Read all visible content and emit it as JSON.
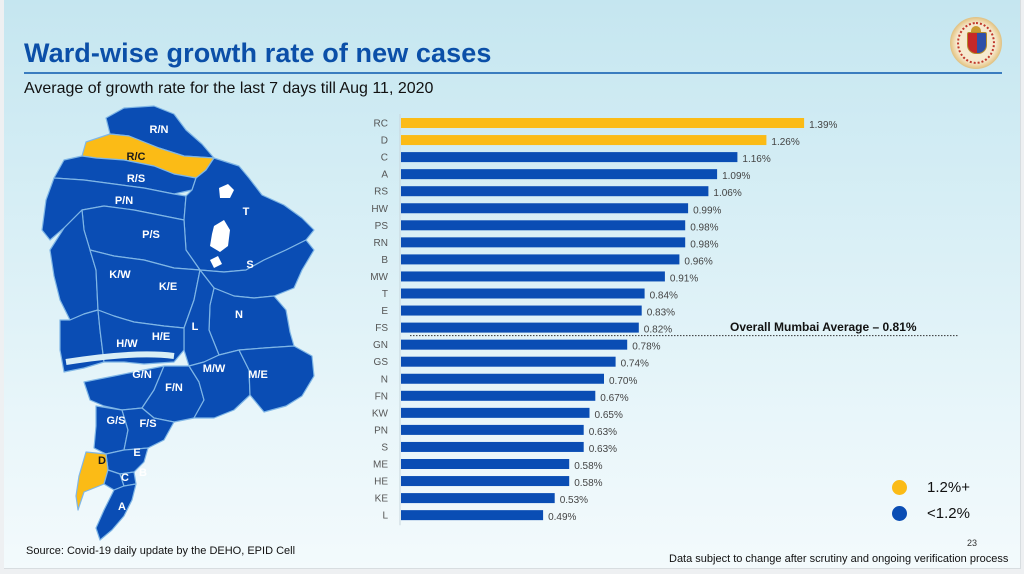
{
  "slide": {
    "title": "Ward-wise growth rate of new cases",
    "subtitle": "Average of growth rate for the last 7 days till Aug 11, 2020",
    "logo_icon": "bmc-emblem-icon",
    "source": "Source: Covid-19 daily update by the DEHO, EPID Cell",
    "disclaimer": "Data subject to change after scrutiny and ongoing verification process",
    "page_number": "23"
  },
  "map": {
    "wards": [
      {
        "label": "R/N",
        "category": "<1.2%"
      },
      {
        "label": "R/C",
        "category": "1.2%+"
      },
      {
        "label": "R/S",
        "category": "<1.2%"
      },
      {
        "label": "P/N",
        "category": "<1.2%"
      },
      {
        "label": "P/S",
        "category": "<1.2%"
      },
      {
        "label": "T",
        "category": "<1.2%"
      },
      {
        "label": "S",
        "category": "<1.2%"
      },
      {
        "label": "K/W",
        "category": "<1.2%"
      },
      {
        "label": "K/E",
        "category": "<1.2%"
      },
      {
        "label": "N",
        "category": "<1.2%"
      },
      {
        "label": "L",
        "category": "<1.2%"
      },
      {
        "label": "H/W",
        "category": "<1.2%"
      },
      {
        "label": "H/E",
        "category": "<1.2%"
      },
      {
        "label": "G/N",
        "category": "<1.2%"
      },
      {
        "label": "F/N",
        "category": "<1.2%"
      },
      {
        "label": "M/W",
        "category": "<1.2%"
      },
      {
        "label": "M/E",
        "category": "<1.2%"
      },
      {
        "label": "G/S",
        "category": "<1.2%"
      },
      {
        "label": "F/S",
        "category": "<1.2%"
      },
      {
        "label": "E",
        "category": "<1.2%"
      },
      {
        "label": "D",
        "category": "1.2%+"
      },
      {
        "label": "C",
        "category": "<1.2%"
      },
      {
        "label": "B",
        "category": "<1.2%"
      },
      {
        "label": "A",
        "category": "<1.2%"
      }
    ]
  },
  "legend": {
    "items": [
      {
        "label": "1.2%+",
        "color": "#fbbb16"
      },
      {
        "label": "<1.2%",
        "color": "#0a4db4"
      }
    ]
  },
  "chart_data": {
    "type": "bar",
    "orientation": "horizontal",
    "title": "Ward-wise growth rate of new cases",
    "subtitle": "Average of growth rate for the last 7 days till Aug 11, 2020",
    "xlabel": "",
    "ylabel": "",
    "unit": "%",
    "xlim": [
      0,
      1.5
    ],
    "grid": false,
    "categories": [
      "RC",
      "D",
      "C",
      "A",
      "RS",
      "HW",
      "PS",
      "RN",
      "B",
      "MW",
      "T",
      "E",
      "FS",
      "GN",
      "GS",
      "N",
      "FN",
      "KW",
      "PN",
      "S",
      "ME",
      "HE",
      "KE",
      "L"
    ],
    "values": [
      1.39,
      1.26,
      1.16,
      1.09,
      1.06,
      0.99,
      0.98,
      0.98,
      0.96,
      0.91,
      0.84,
      0.83,
      0.82,
      0.78,
      0.74,
      0.7,
      0.67,
      0.65,
      0.63,
      0.63,
      0.58,
      0.58,
      0.53,
      0.49
    ],
    "value_labels": [
      "1.39%",
      "1.26%",
      "1.16%",
      "1.09%",
      "1.06%",
      "0.99%",
      "0.98%",
      "0.98%",
      "0.96%",
      "0.91%",
      "0.84%",
      "0.83%",
      "0.82%",
      "0.78%",
      "0.74%",
      "0.70%",
      "0.67%",
      "0.65%",
      "0.63%",
      "0.63%",
      "0.58%",
      "0.58%",
      "0.53%",
      "0.49%"
    ],
    "threshold": 1.2,
    "colors": {
      "high": "#fbbb16",
      "low": "#0a4db4"
    },
    "reference_line": {
      "value": 0.81,
      "label": "Overall Mumbai Average – 0.81%",
      "style": "dotted"
    },
    "legend": {
      "position": "bottom-right",
      "entries": [
        "1.2%+",
        "<1.2%"
      ]
    }
  }
}
